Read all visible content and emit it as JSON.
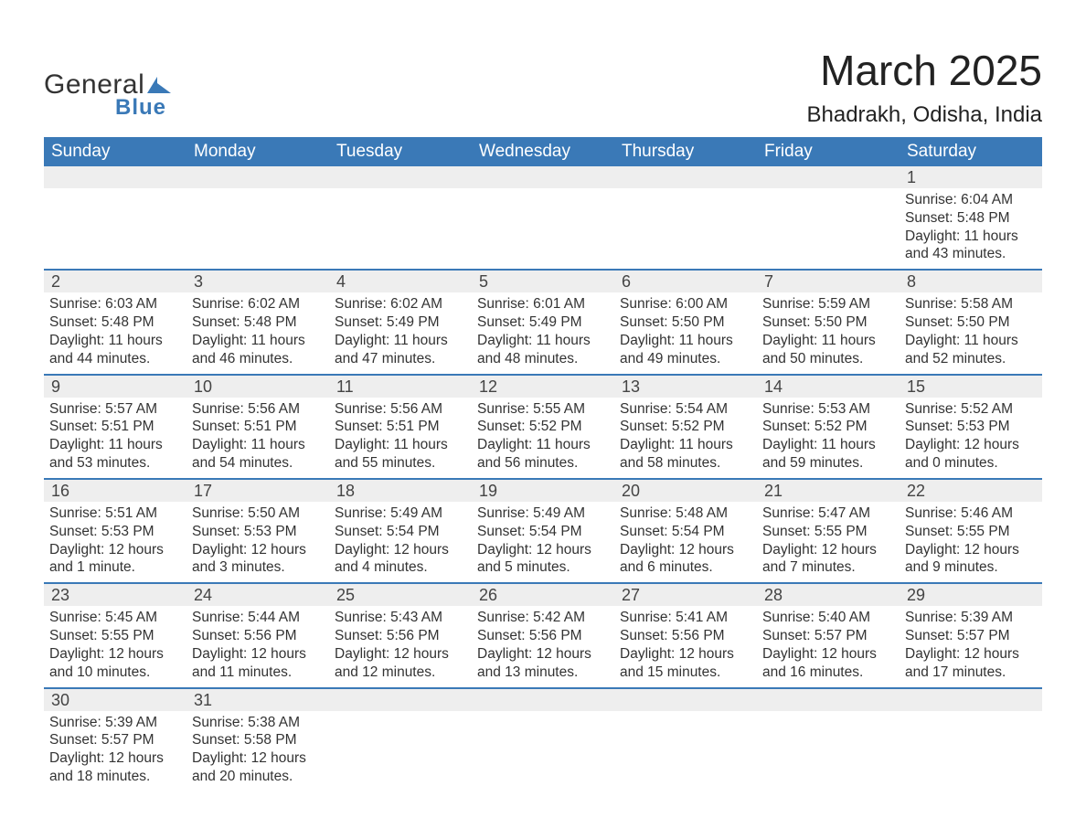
{
  "logo": {
    "text1": "General",
    "text2": "Blue",
    "accent_color": "#3a79b7"
  },
  "title": "March 2025",
  "location": "Bhadrakh, Odisha, India",
  "colors": {
    "header_bg": "#3a79b7",
    "header_text": "#ffffff",
    "daynum_bg": "#eeeeee",
    "row_border": "#3a79b7",
    "text": "#333333",
    "page_bg": "#ffffff"
  },
  "font": {
    "family": "Arial",
    "title_size": 46,
    "location_size": 24,
    "header_size": 19,
    "body_size": 15.5
  },
  "day_headers": [
    "Sunday",
    "Monday",
    "Tuesday",
    "Wednesday",
    "Thursday",
    "Friday",
    "Saturday"
  ],
  "weeks": [
    [
      null,
      null,
      null,
      null,
      null,
      null,
      {
        "n": "1",
        "sr": "Sunrise: 6:04 AM",
        "ss": "Sunset: 5:48 PM",
        "d1": "Daylight: 11 hours",
        "d2": "and 43 minutes."
      }
    ],
    [
      {
        "n": "2",
        "sr": "Sunrise: 6:03 AM",
        "ss": "Sunset: 5:48 PM",
        "d1": "Daylight: 11 hours",
        "d2": "and 44 minutes."
      },
      {
        "n": "3",
        "sr": "Sunrise: 6:02 AM",
        "ss": "Sunset: 5:48 PM",
        "d1": "Daylight: 11 hours",
        "d2": "and 46 minutes."
      },
      {
        "n": "4",
        "sr": "Sunrise: 6:02 AM",
        "ss": "Sunset: 5:49 PM",
        "d1": "Daylight: 11 hours",
        "d2": "and 47 minutes."
      },
      {
        "n": "5",
        "sr": "Sunrise: 6:01 AM",
        "ss": "Sunset: 5:49 PM",
        "d1": "Daylight: 11 hours",
        "d2": "and 48 minutes."
      },
      {
        "n": "6",
        "sr": "Sunrise: 6:00 AM",
        "ss": "Sunset: 5:50 PM",
        "d1": "Daylight: 11 hours",
        "d2": "and 49 minutes."
      },
      {
        "n": "7",
        "sr": "Sunrise: 5:59 AM",
        "ss": "Sunset: 5:50 PM",
        "d1": "Daylight: 11 hours",
        "d2": "and 50 minutes."
      },
      {
        "n": "8",
        "sr": "Sunrise: 5:58 AM",
        "ss": "Sunset: 5:50 PM",
        "d1": "Daylight: 11 hours",
        "d2": "and 52 minutes."
      }
    ],
    [
      {
        "n": "9",
        "sr": "Sunrise: 5:57 AM",
        "ss": "Sunset: 5:51 PM",
        "d1": "Daylight: 11 hours",
        "d2": "and 53 minutes."
      },
      {
        "n": "10",
        "sr": "Sunrise: 5:56 AM",
        "ss": "Sunset: 5:51 PM",
        "d1": "Daylight: 11 hours",
        "d2": "and 54 minutes."
      },
      {
        "n": "11",
        "sr": "Sunrise: 5:56 AM",
        "ss": "Sunset: 5:51 PM",
        "d1": "Daylight: 11 hours",
        "d2": "and 55 minutes."
      },
      {
        "n": "12",
        "sr": "Sunrise: 5:55 AM",
        "ss": "Sunset: 5:52 PM",
        "d1": "Daylight: 11 hours",
        "d2": "and 56 minutes."
      },
      {
        "n": "13",
        "sr": "Sunrise: 5:54 AM",
        "ss": "Sunset: 5:52 PM",
        "d1": "Daylight: 11 hours",
        "d2": "and 58 minutes."
      },
      {
        "n": "14",
        "sr": "Sunrise: 5:53 AM",
        "ss": "Sunset: 5:52 PM",
        "d1": "Daylight: 11 hours",
        "d2": "and 59 minutes."
      },
      {
        "n": "15",
        "sr": "Sunrise: 5:52 AM",
        "ss": "Sunset: 5:53 PM",
        "d1": "Daylight: 12 hours",
        "d2": "and 0 minutes."
      }
    ],
    [
      {
        "n": "16",
        "sr": "Sunrise: 5:51 AM",
        "ss": "Sunset: 5:53 PM",
        "d1": "Daylight: 12 hours",
        "d2": "and 1 minute."
      },
      {
        "n": "17",
        "sr": "Sunrise: 5:50 AM",
        "ss": "Sunset: 5:53 PM",
        "d1": "Daylight: 12 hours",
        "d2": "and 3 minutes."
      },
      {
        "n": "18",
        "sr": "Sunrise: 5:49 AM",
        "ss": "Sunset: 5:54 PM",
        "d1": "Daylight: 12 hours",
        "d2": "and 4 minutes."
      },
      {
        "n": "19",
        "sr": "Sunrise: 5:49 AM",
        "ss": "Sunset: 5:54 PM",
        "d1": "Daylight: 12 hours",
        "d2": "and 5 minutes."
      },
      {
        "n": "20",
        "sr": "Sunrise: 5:48 AM",
        "ss": "Sunset: 5:54 PM",
        "d1": "Daylight: 12 hours",
        "d2": "and 6 minutes."
      },
      {
        "n": "21",
        "sr": "Sunrise: 5:47 AM",
        "ss": "Sunset: 5:55 PM",
        "d1": "Daylight: 12 hours",
        "d2": "and 7 minutes."
      },
      {
        "n": "22",
        "sr": "Sunrise: 5:46 AM",
        "ss": "Sunset: 5:55 PM",
        "d1": "Daylight: 12 hours",
        "d2": "and 9 minutes."
      }
    ],
    [
      {
        "n": "23",
        "sr": "Sunrise: 5:45 AM",
        "ss": "Sunset: 5:55 PM",
        "d1": "Daylight: 12 hours",
        "d2": "and 10 minutes."
      },
      {
        "n": "24",
        "sr": "Sunrise: 5:44 AM",
        "ss": "Sunset: 5:56 PM",
        "d1": "Daylight: 12 hours",
        "d2": "and 11 minutes."
      },
      {
        "n": "25",
        "sr": "Sunrise: 5:43 AM",
        "ss": "Sunset: 5:56 PM",
        "d1": "Daylight: 12 hours",
        "d2": "and 12 minutes."
      },
      {
        "n": "26",
        "sr": "Sunrise: 5:42 AM",
        "ss": "Sunset: 5:56 PM",
        "d1": "Daylight: 12 hours",
        "d2": "and 13 minutes."
      },
      {
        "n": "27",
        "sr": "Sunrise: 5:41 AM",
        "ss": "Sunset: 5:56 PM",
        "d1": "Daylight: 12 hours",
        "d2": "and 15 minutes."
      },
      {
        "n": "28",
        "sr": "Sunrise: 5:40 AM",
        "ss": "Sunset: 5:57 PM",
        "d1": "Daylight: 12 hours",
        "d2": "and 16 minutes."
      },
      {
        "n": "29",
        "sr": "Sunrise: 5:39 AM",
        "ss": "Sunset: 5:57 PM",
        "d1": "Daylight: 12 hours",
        "d2": "and 17 minutes."
      }
    ],
    [
      {
        "n": "30",
        "sr": "Sunrise: 5:39 AM",
        "ss": "Sunset: 5:57 PM",
        "d1": "Daylight: 12 hours",
        "d2": "and 18 minutes."
      },
      {
        "n": "31",
        "sr": "Sunrise: 5:38 AM",
        "ss": "Sunset: 5:58 PM",
        "d1": "Daylight: 12 hours",
        "d2": "and 20 minutes."
      },
      null,
      null,
      null,
      null,
      null
    ]
  ]
}
